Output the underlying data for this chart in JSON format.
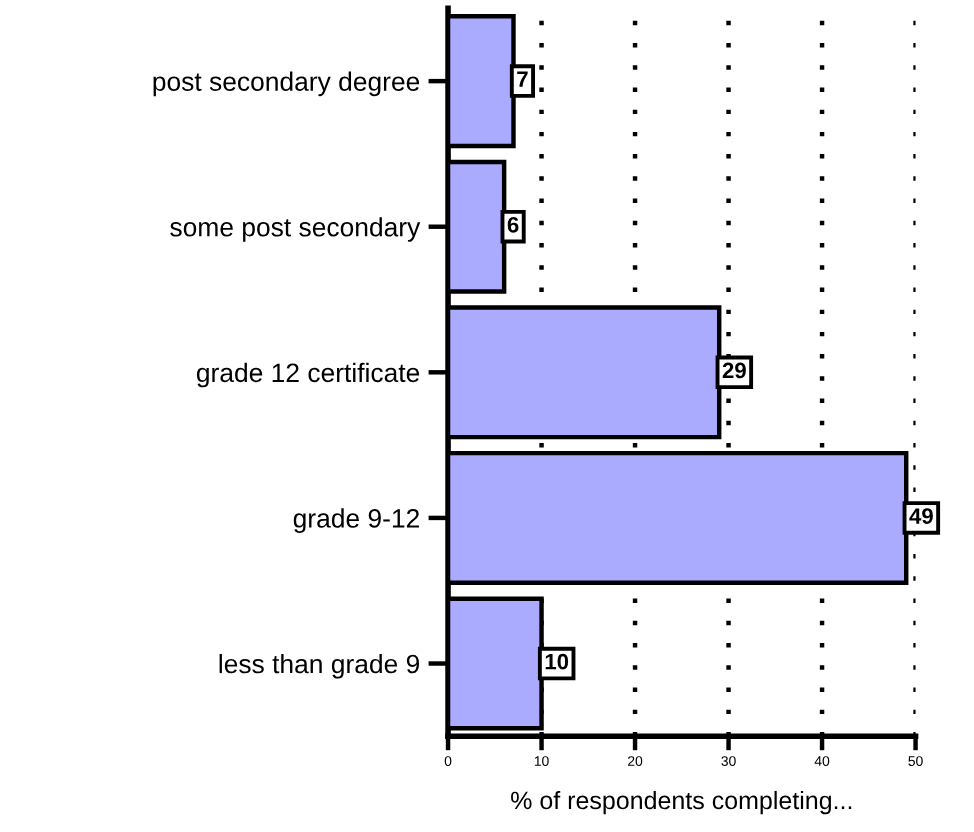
{
  "chart_data": {
    "type": "bar",
    "orientation": "horizontal",
    "xlabel": "% of respondents completing...",
    "categories": [
      "post secondary degree",
      "some post secondary",
      "grade 12 certificate",
      "grade 9-12",
      "less than grade 9"
    ],
    "values": [
      7,
      6,
      29,
      49,
      10
    ],
    "color": "#aaaaff",
    "xlim": [
      0,
      50
    ],
    "xticks": [
      0,
      10,
      20,
      30,
      40,
      50
    ],
    "grid": "x",
    "data_labels": true
  }
}
